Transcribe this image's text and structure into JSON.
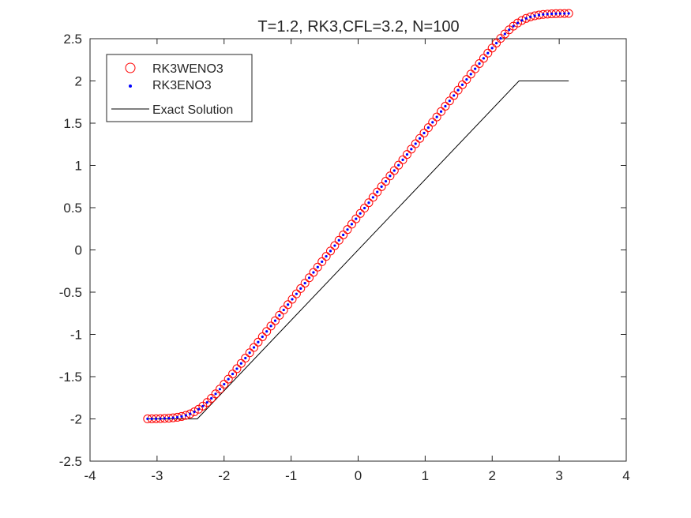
{
  "chart_data": {
    "type": "line",
    "title": "T=1.2, RK3,CFL=3.2, N=100",
    "xlabel": "",
    "ylabel": "",
    "xlim": [
      -4,
      4
    ],
    "ylim": [
      -2.5,
      2.5
    ],
    "xticks": [
      -4,
      -3,
      -2,
      -1,
      0,
      1,
      2,
      3,
      4
    ],
    "yticks": [
      -2.5,
      -2,
      -1.5,
      -1,
      -0.5,
      0,
      0.5,
      1,
      1.5,
      2,
      2.5
    ],
    "xtick_labels": [
      "-4",
      "-3",
      "-2",
      "-1",
      "0",
      "1",
      "2",
      "3",
      "4"
    ],
    "ytick_labels": [
      "-2.5",
      "-2",
      "-1.5",
      "-1",
      "-0.5",
      "0",
      "0.5",
      "1",
      "1.5",
      "2",
      "2.5"
    ],
    "grid": false,
    "legend_position": "top-left",
    "series": [
      {
        "name": "RK3WENO3",
        "marker": "circle",
        "color": "#ff0000",
        "x_range": [
          -3.1416,
          3.1416
        ],
        "n_points": 100,
        "profile": {
          "plateau": 2,
          "slope_end_x": 2.4,
          "overshoot": 0.0,
          "smoothing": 0.15
        }
      },
      {
        "name": "RK3ENO3",
        "marker": "dot",
        "color": "#0000ff",
        "x_range": [
          -3.1416,
          3.1416
        ],
        "n_points": 100,
        "profile": {
          "plateau": 2,
          "slope_end_x": 2.4,
          "overshoot": 0.0,
          "smoothing": 0.15
        }
      },
      {
        "name": "Exact Solution",
        "marker": "line",
        "color": "#000000",
        "x": [
          -3.1416,
          -2.4,
          2.4,
          3.1416
        ],
        "y": [
          -2,
          -2,
          2,
          2
        ]
      }
    ]
  }
}
